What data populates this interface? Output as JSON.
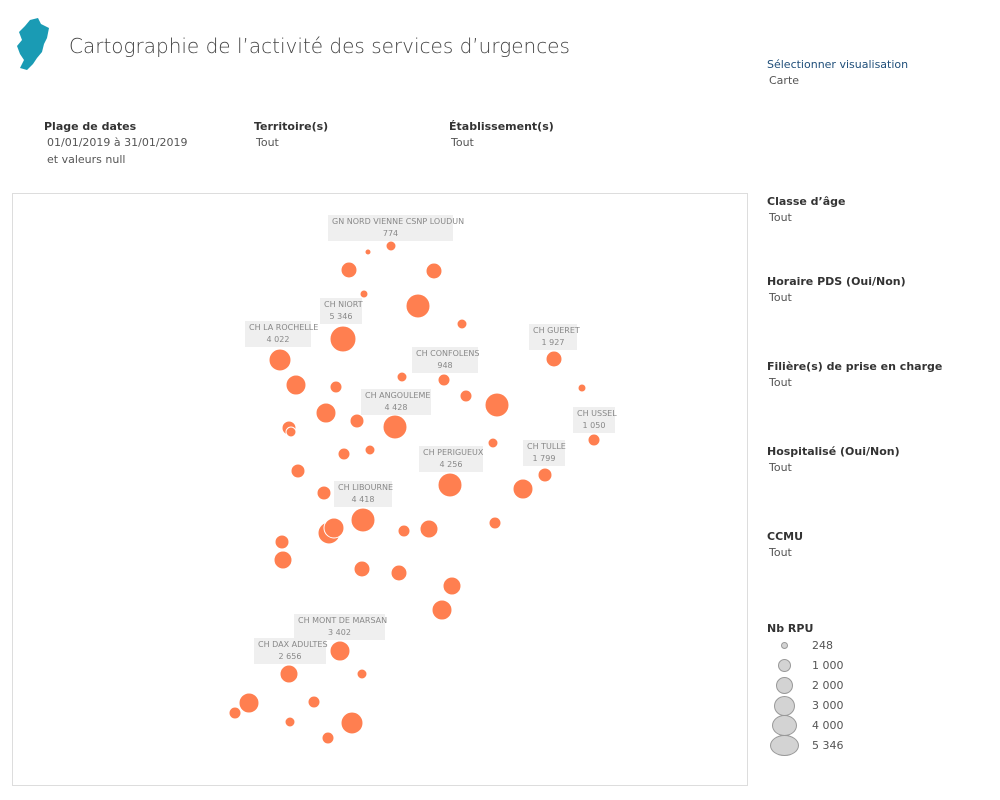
{
  "header": {
    "title": "Cartographie de l’activité des services d’urgences",
    "logo_icon": "region-map-logo-icon",
    "logo_color": "#1a9bb4"
  },
  "viz_select": {
    "label": "Sélectionner visualisation",
    "value": "Carte"
  },
  "filters": {
    "dates": {
      "label": "Plage de dates",
      "value": "01/01/2019 à 31/01/2019",
      "extra": "et valeurs null"
    },
    "territoire": {
      "label": "Territoire(s)",
      "value": "Tout"
    },
    "etablissement": {
      "label": "Établissement(s)",
      "value": "Tout"
    }
  },
  "side_filters": [
    {
      "label": "Classe d’âge",
      "value": "Tout"
    },
    {
      "label": "Horaire PDS (Oui/Non)",
      "value": "Tout"
    },
    {
      "label": "Filière(s) de prise en charge",
      "value": "Tout"
    },
    {
      "label": "Hospitalisé (Oui/Non)",
      "value": "Tout"
    },
    {
      "label": "CCMU",
      "value": "Tout"
    }
  ],
  "map": {
    "bubble_color": "#ff7f50",
    "labels": [
      {
        "name": "GN NORD VIENNE CSNP LOUDUN",
        "value": "774"
      },
      {
        "name": "CH NIORT",
        "value": "5 346"
      },
      {
        "name": "CH LA ROCHELLE",
        "value": "4 022"
      },
      {
        "name": "CH GUERET",
        "value": "1 927"
      },
      {
        "name": "CH CONFOLENS",
        "value": "948"
      },
      {
        "name": "CH ANGOULEME",
        "value": "4 428"
      },
      {
        "name": "CH USSEL",
        "value": "1 050"
      },
      {
        "name": "CH TULLE",
        "value": "1 799"
      },
      {
        "name": "CH PERIGUEUX",
        "value": "4 256"
      },
      {
        "name": "CH LIBOURNE",
        "value": "4 418"
      },
      {
        "name": "CH MONT DE MARSAN",
        "value": "3 402"
      },
      {
        "name": "CH DAX ADULTES",
        "value": "2 656"
      }
    ]
  },
  "legend": {
    "title": "Nb RPU",
    "items": [
      {
        "label": "248",
        "value": 248
      },
      {
        "label": "1 000",
        "value": 1000
      },
      {
        "label": "2 000",
        "value": 2000
      },
      {
        "label": "3 000",
        "value": 3000
      },
      {
        "label": "4 000",
        "value": 4000
      },
      {
        "label": "5 346",
        "value": 5346
      }
    ]
  }
}
